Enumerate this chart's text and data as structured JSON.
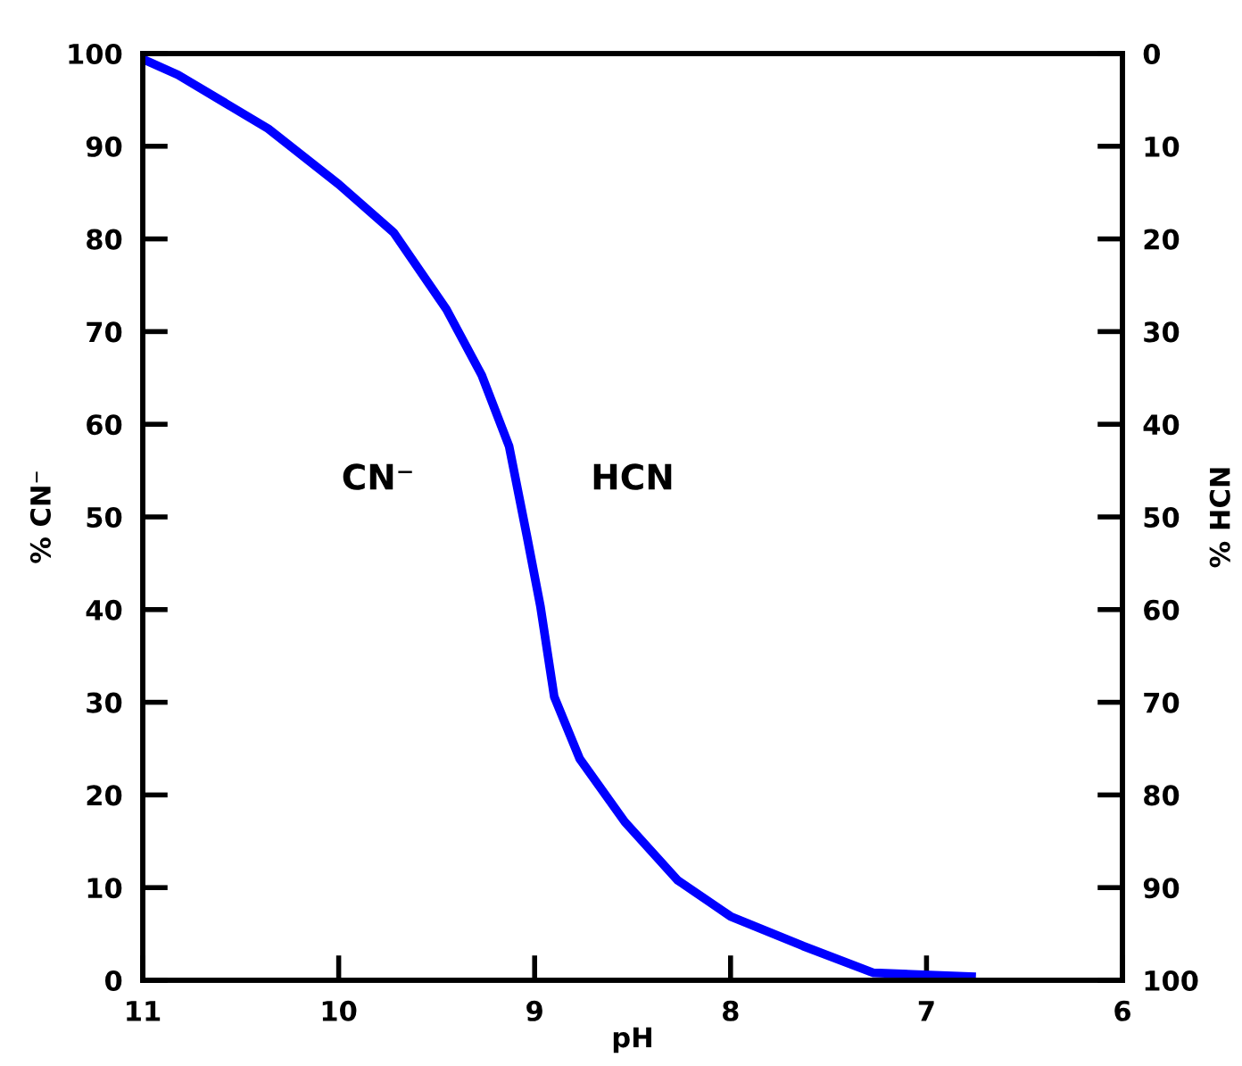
{
  "chart_data": {
    "type": "line",
    "xlabel": "pH",
    "ylabel": "% CN⁻",
    "y2label": "% HCN",
    "x": [
      11,
      10.82,
      10.36,
      10.0,
      9.72,
      9.45,
      9.27,
      9.13,
      9.04,
      8.97,
      8.9,
      8.77,
      8.54,
      8.27,
      8.0,
      7.63,
      7.27,
      6.77
    ],
    "series": [
      {
        "color": "#0000ff",
        "values": [
          99.4,
          97.7,
          91.9,
          85.9,
          80.7,
          72.4,
          65.3,
          57.6,
          48,
          40.3,
          30.6,
          23.9,
          17.1,
          10.8,
          6.9,
          3.7,
          0.8,
          0.4
        ]
      }
    ],
    "xlim": [
      11,
      6
    ],
    "xticks": [
      11,
      10,
      9,
      8,
      7,
      6
    ],
    "ylim": [
      0,
      100
    ],
    "yticks": [
      0,
      10,
      20,
      30,
      40,
      50,
      60,
      70,
      80,
      90,
      100
    ],
    "y2lim": [
      100,
      0
    ],
    "y2ticks": [
      100,
      90,
      80,
      70,
      60,
      50,
      40,
      30,
      20,
      10,
      0
    ],
    "annotations": [
      "CN⁻",
      "HCN"
    ],
    "grid": false,
    "marker": "none",
    "line_style": "solid"
  }
}
